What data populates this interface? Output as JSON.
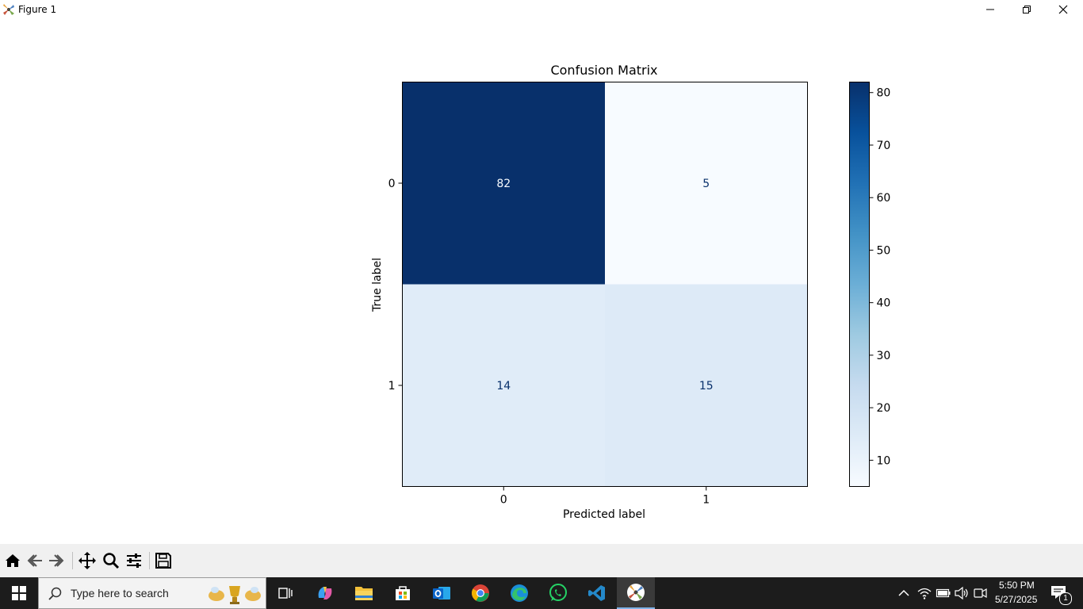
{
  "window": {
    "title": "Figure 1"
  },
  "chart_data": {
    "type": "heatmap",
    "title": "Confusion Matrix",
    "xlabel": "Predicted label",
    "ylabel": "True label",
    "x_categories": [
      "0",
      "1"
    ],
    "y_categories": [
      "0",
      "1"
    ],
    "values": [
      [
        82,
        5
      ],
      [
        14,
        15
      ]
    ],
    "colormap": "Blues",
    "colorbar": {
      "min": 5,
      "max": 82,
      "ticks": [
        10,
        20,
        30,
        40,
        50,
        60,
        70,
        80
      ]
    }
  },
  "toolbar": {
    "buttons": [
      "home-icon",
      "back-icon",
      "forward-icon",
      "pan-icon",
      "zoom-icon",
      "configure-subplots-icon",
      "save-icon"
    ]
  },
  "taskbar": {
    "search_placeholder": "Type here to search",
    "time": "5:50 PM",
    "date": "5/27/2025",
    "notification_count": "1",
    "apps": [
      "task-view-icon",
      "copilot-icon",
      "file-explorer-icon",
      "microsoft-store-icon",
      "outlook-icon",
      "chrome-icon",
      "edge-icon",
      "whatsapp-icon",
      "vscode-icon",
      "python-figure-icon"
    ]
  }
}
